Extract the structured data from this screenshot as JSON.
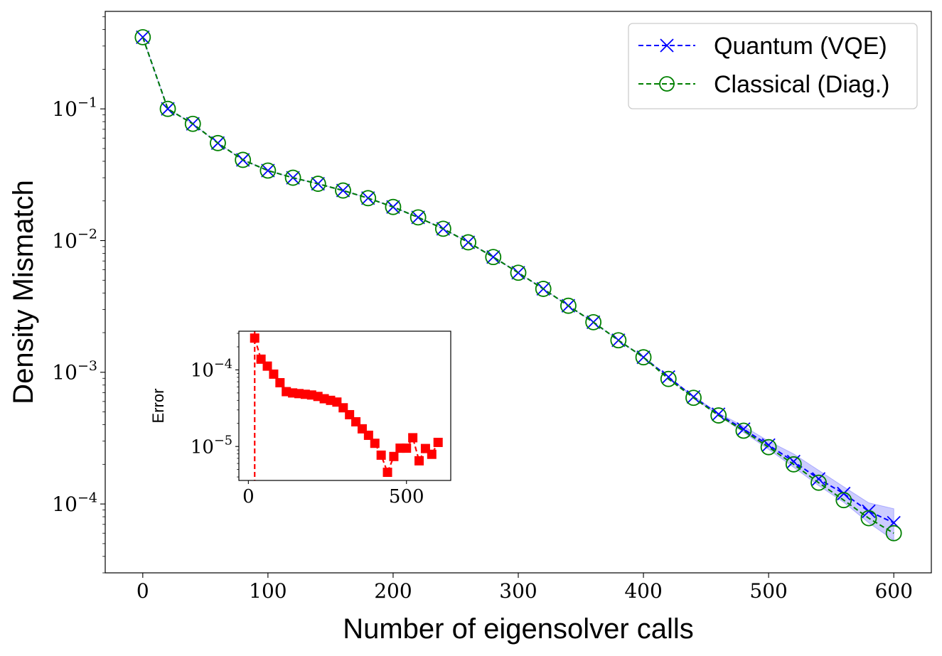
{
  "chart_data": [
    {
      "type": "line",
      "title": "",
      "xlabel": "Number of eigensolver calls",
      "ylabel": "Density Mismatch",
      "xlim": [
        -30,
        630
      ],
      "ylim": [
        3e-05,
        0.55
      ],
      "yscale": "log",
      "xticks": [
        0,
        100,
        200,
        300,
        400,
        500,
        600
      ],
      "xtick_labels": [
        "0",
        "100",
        "200",
        "300",
        "400",
        "500",
        "600"
      ],
      "yticks": [
        0.1,
        0.01,
        0.001,
        0.0001
      ],
      "ytick_labels": [
        {
          "base": "10",
          "exp": "−1"
        },
        {
          "base": "10",
          "exp": "−2"
        },
        {
          "base": "10",
          "exp": "−3"
        },
        {
          "base": "10",
          "exp": "−4"
        }
      ],
      "legend_position": "top-right",
      "grid": false,
      "x": [
        0,
        20,
        40,
        60,
        80,
        100,
        120,
        140,
        160,
        180,
        200,
        220,
        240,
        260,
        280,
        300,
        320,
        340,
        360,
        380,
        400,
        420,
        440,
        460,
        480,
        500,
        520,
        540,
        560,
        580,
        600
      ],
      "series": [
        {
          "name": "Quantum (VQE)",
          "color": "#0000ff",
          "marker": "x",
          "linestyle": "dashed",
          "values": [
            0.35,
            0.1,
            0.077,
            0.055,
            0.041,
            0.034,
            0.03,
            0.027,
            0.024,
            0.021,
            0.018,
            0.015,
            0.0123,
            0.0097,
            0.0075,
            0.0057,
            0.0043,
            0.0032,
            0.0024,
            0.00175,
            0.0013,
            0.00092,
            0.00065,
            0.00048,
            0.00037,
            0.00028,
            0.00021,
            0.000155,
            0.00012,
            8.8e-05,
            7.2e-05
          ],
          "band_lower": [
            0.35,
            0.1,
            0.077,
            0.055,
            0.041,
            0.034,
            0.03,
            0.027,
            0.024,
            0.021,
            0.018,
            0.015,
            0.0123,
            0.0097,
            0.0075,
            0.0057,
            0.0043,
            0.0032,
            0.0024,
            0.00175,
            0.0013,
            0.00092,
            0.00064,
            0.00047,
            0.00035,
            0.00026,
            0.00019,
            0.000138,
            0.000103,
            7.2e-05,
            5.3e-05
          ],
          "band_upper": [
            0.35,
            0.1,
            0.077,
            0.055,
            0.041,
            0.034,
            0.03,
            0.027,
            0.024,
            0.021,
            0.018,
            0.015,
            0.0123,
            0.0097,
            0.0075,
            0.0057,
            0.0043,
            0.0032,
            0.0024,
            0.00175,
            0.0013,
            0.00092,
            0.00066,
            0.00049,
            0.00039,
            0.0003,
            0.00024,
            0.00018,
            0.000135,
            0.000102,
            9.2e-05
          ]
        },
        {
          "name": "Classical (Diag.)",
          "color": "#008000",
          "marker": "o",
          "linestyle": "dashed",
          "values": [
            0.35,
            0.1,
            0.077,
            0.055,
            0.041,
            0.034,
            0.03,
            0.027,
            0.024,
            0.021,
            0.018,
            0.015,
            0.0123,
            0.0097,
            0.0075,
            0.0057,
            0.0043,
            0.0032,
            0.0024,
            0.00175,
            0.0013,
            0.00089,
            0.00064,
            0.00047,
            0.00036,
            0.00027,
            0.0002,
            0.000145,
            0.000107,
            7.8e-05,
            6e-05
          ]
        }
      ]
    },
    {
      "type": "line",
      "title": "",
      "xlabel": "",
      "ylabel": "Error",
      "xlim": [
        -30,
        640
      ],
      "ylim": [
        3.6e-06,
        0.00032
      ],
      "yscale": "log",
      "xticks": [
        0,
        500
      ],
      "xtick_labels": [
        "0",
        "500"
      ],
      "yticks": [
        0.0001,
        1e-05
      ],
      "ytick_labels": [
        {
          "base": "10",
          "exp": "−4"
        },
        {
          "base": "10",
          "exp": "−5"
        }
      ],
      "vline_x": 20,
      "vline_color": "#ff0000",
      "x": [
        20,
        40,
        60,
        80,
        100,
        120,
        140,
        160,
        180,
        200,
        220,
        240,
        260,
        280,
        300,
        320,
        340,
        360,
        380,
        400,
        420,
        440,
        460,
        480,
        500,
        520,
        540,
        560,
        580,
        600
      ],
      "series": [
        {
          "color": "#ff0000",
          "marker": "s",
          "linestyle": "dashed",
          "values": [
            0.00026,
            0.000138,
            0.000112,
            8.8e-05,
            6.8e-05,
            5.2e-05,
            5e-05,
            4.9e-05,
            4.8e-05,
            4.7e-05,
            4.5e-05,
            4.2e-05,
            4e-05,
            3.8e-05,
            3.2e-05,
            2.6e-05,
            2.1e-05,
            1.7e-05,
            1.4e-05,
            1.1e-05,
            7.7e-06,
            4.6e-06,
            7.4e-06,
            9.5e-06,
            9.5e-06,
            1.3e-05,
            6.5e-06,
            9.4e-06,
            7.9e-06,
            1.13e-05
          ]
        }
      ]
    }
  ]
}
